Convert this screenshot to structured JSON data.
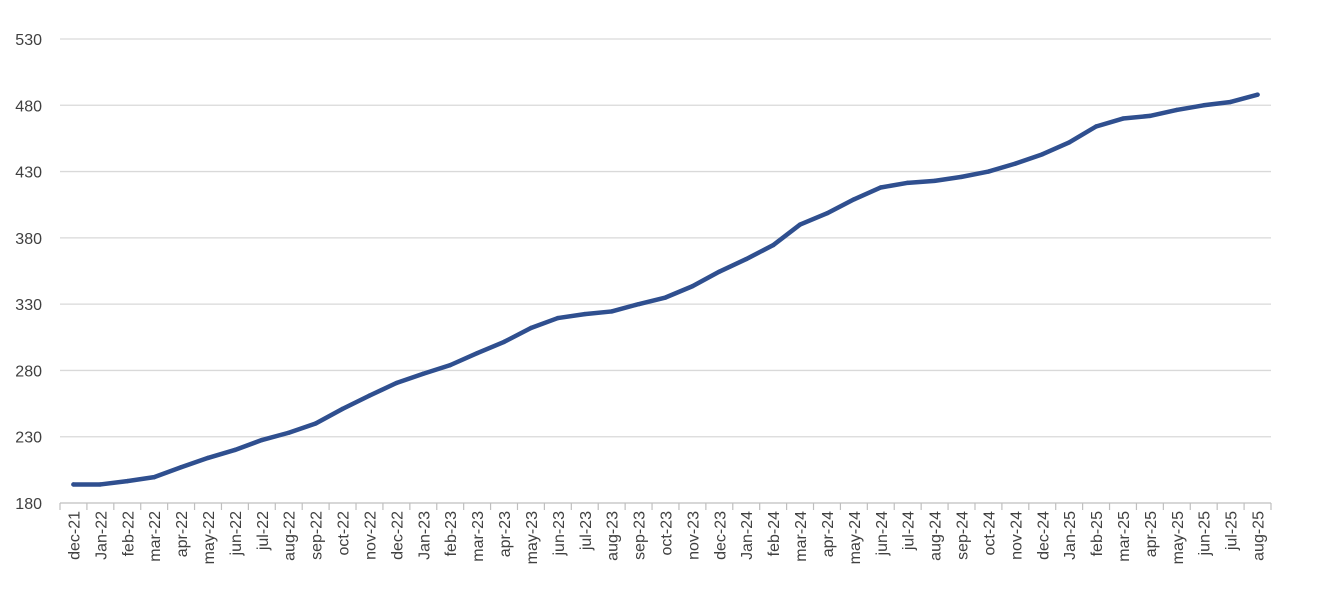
{
  "chart_data": {
    "type": "line",
    "title": "",
    "xlabel": "",
    "ylabel": "",
    "ylim": [
      180,
      530
    ],
    "yticks": [
      180,
      230,
      280,
      330,
      380,
      430,
      480,
      530
    ],
    "grid": "horizontal",
    "legend": "none",
    "colors": {
      "line": "#2F4F8F",
      "grid": "#d9d9d9",
      "axis": "#bfbfbf",
      "text": "#404040"
    },
    "categories": [
      "dec-21",
      "Jan-22",
      "feb-22",
      "mar-22",
      "apr-22",
      "may-22",
      "jun-22",
      "jul-22",
      "aug-22",
      "sep-22",
      "oct-22",
      "nov-22",
      "dec-22",
      "Jan-23",
      "feb-23",
      "mar-23",
      "apr-23",
      "may-23",
      "jun-23",
      "jul-23",
      "aug-23",
      "sep-23",
      "oct-23",
      "nov-23",
      "dec-23",
      "Jan-24",
      "feb-24",
      "mar-24",
      "apr-24",
      "may-24",
      "jun-24",
      "jul-24",
      "aug-24",
      "sep-24",
      "oct-24",
      "nov-24",
      "dec-24",
      "Jan-25",
      "feb-25",
      "mar-25",
      "apr-25",
      "may-25",
      "jun-25",
      "jul-25",
      "aug-25"
    ],
    "series": [
      {
        "values": [
          194,
          194,
          196.5,
          199.5,
          207,
          214,
          220,
          227.5,
          233,
          240,
          251,
          261,
          270.5,
          277.5,
          284,
          293,
          301.5,
          312,
          319.5,
          322.5,
          324.5,
          330,
          335,
          343.5,
          354.5,
          364,
          374.5,
          390,
          398.5,
          409,
          418,
          421.5,
          423,
          426,
          430,
          436,
          443,
          452,
          464,
          470,
          472,
          476.5,
          480,
          482.5,
          488
        ]
      }
    ]
  }
}
